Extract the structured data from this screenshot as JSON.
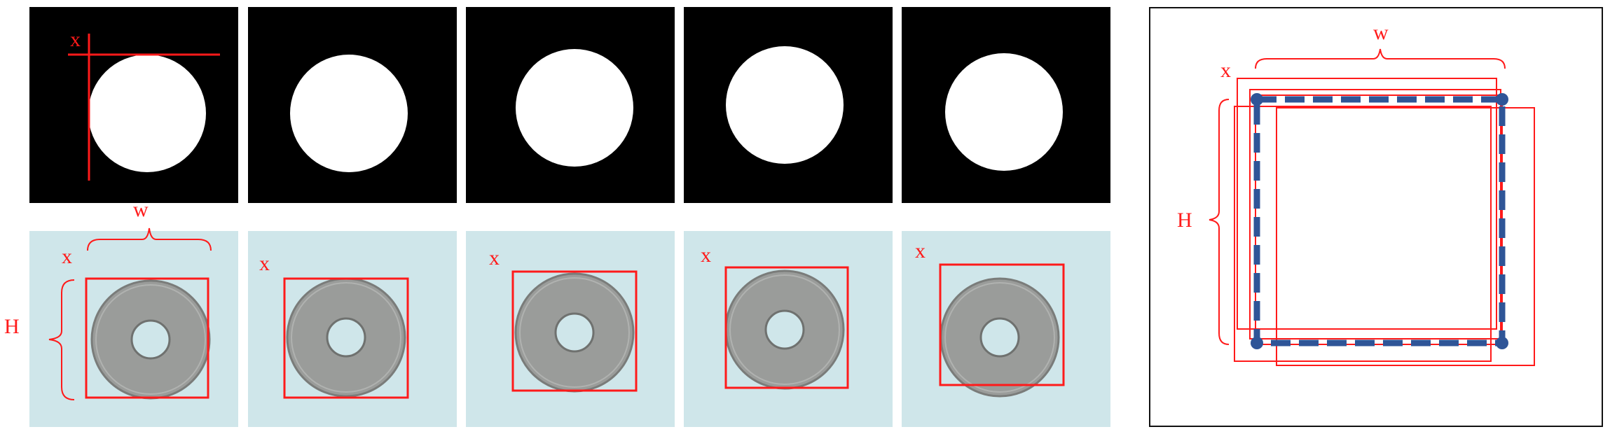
{
  "figure": {
    "colors": {
      "mask_background": "#000000",
      "mask_blob": "#ffffff",
      "photo_background": "#cfe6ea",
      "washer": "#9a9c9a",
      "annotation": "#ff1a1a",
      "final_box": "#2f5597"
    },
    "labels": {
      "x": "x",
      "w": "w",
      "h": "H"
    },
    "summary": {
      "x": "x",
      "w": "w",
      "h": "H"
    }
  }
}
